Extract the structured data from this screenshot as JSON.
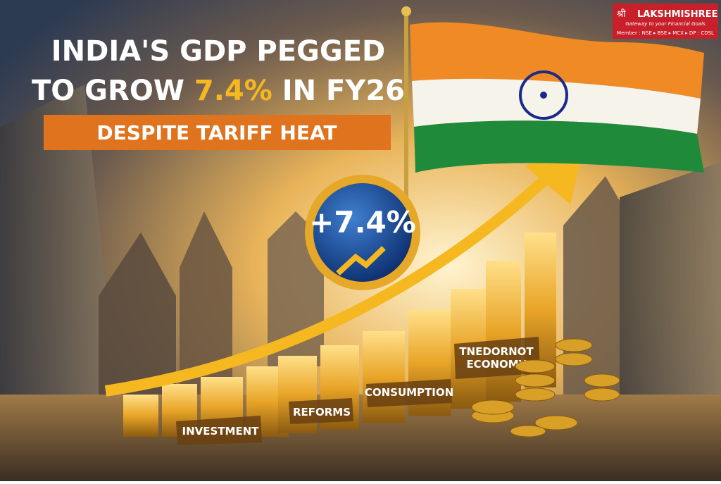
{
  "header": {
    "title_line1": "INDIA'S GDP PEGGED",
    "title_line2_prefix": "TO GROW",
    "title_highlight": "7.4%",
    "title_line2_suffix": "IN FY26",
    "subtitle": "DESPITE TARIFF HEAT"
  },
  "logo": {
    "mark": "श्री",
    "name": "LAKSHMISHREE",
    "tagline": "Gateway to your Financial Goals",
    "membership": "Member : NSE ▸ BSE ▸ MCX ▸ DP : CDSL"
  },
  "badge": {
    "label": "+7.4%"
  },
  "pillars": [
    {
      "lines": [
        "INVESTMENT"
      ]
    },
    {
      "lines": [
        "REFORMS"
      ]
    },
    {
      "lines": [
        "CONSUMPTION"
      ]
    },
    {
      "lines": [
        "TNEDORNOT",
        "ECONOMY"
      ]
    }
  ]
}
